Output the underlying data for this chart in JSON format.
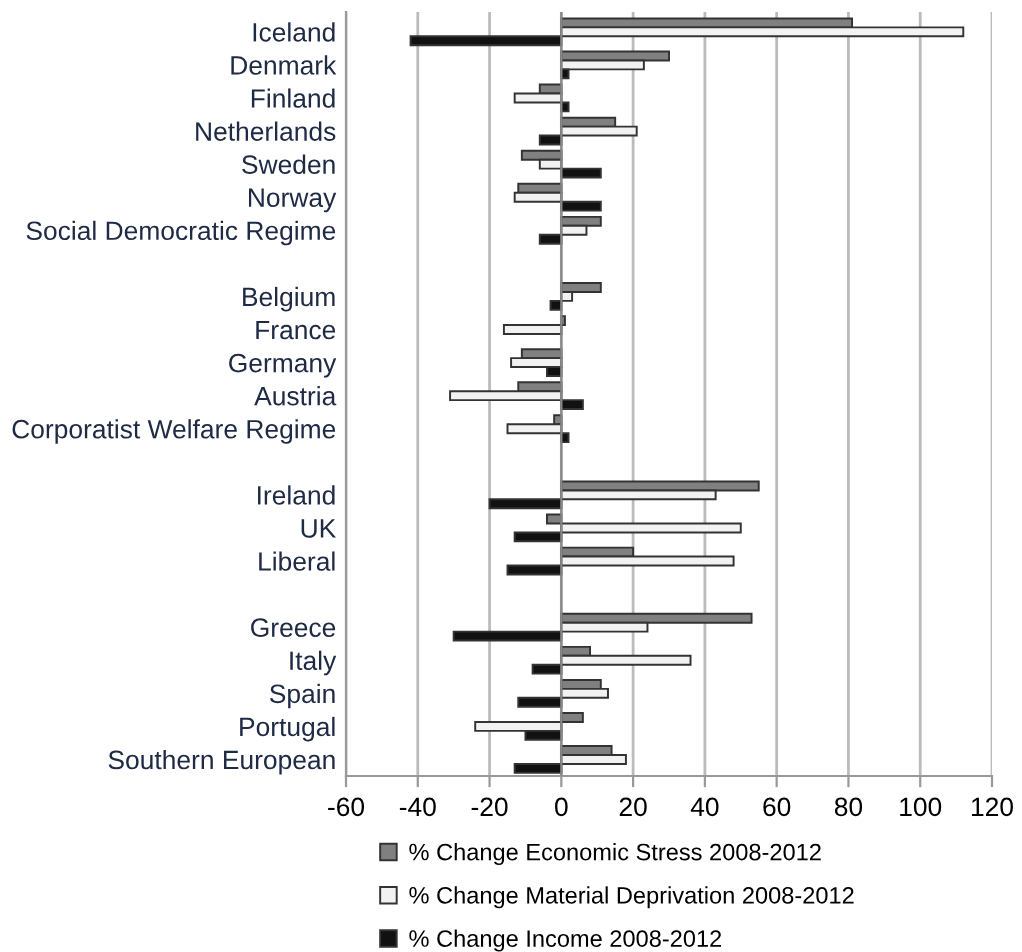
{
  "chart_data": {
    "type": "bar",
    "orientation": "horizontal",
    "categories": [
      "Iceland",
      "Denmark",
      "Finland",
      "Netherlands",
      "Sweden",
      "Norway",
      "Social Democratic Regime",
      null,
      "Belgium",
      "France",
      "Germany",
      "Austria",
      "Corporatist Welfare Regime",
      null,
      "Ireland",
      "UK",
      "Liberal",
      null,
      "Greece",
      "Italy",
      "Spain",
      "Portugal",
      "Southern European"
    ],
    "series": [
      {
        "name": "% Change Economic Stress 2008-2012",
        "color": "#808080",
        "values": [
          81,
          30,
          -6,
          15,
          -11,
          -12,
          11,
          null,
          11,
          1,
          -11,
          -12,
          -2,
          null,
          55,
          -4,
          20,
          null,
          53,
          8,
          11,
          6,
          14
        ]
      },
      {
        "name": "% Change Material Deprivation 2008-2012",
        "color": "#f2f2f2",
        "values": [
          112,
          23,
          -13,
          21,
          -6,
          -13,
          7,
          null,
          3,
          -16,
          -14,
          -31,
          -15,
          null,
          43,
          50,
          48,
          null,
          24,
          36,
          13,
          -24,
          18
        ]
      },
      {
        "name": "% Change Income 2008-2012",
        "color": "#111111",
        "values": [
          -42,
          2,
          2,
          -6,
          11,
          11,
          -6,
          null,
          -3,
          null,
          -4,
          6,
          2,
          null,
          -20,
          -13,
          -15,
          null,
          -30,
          -8,
          -12,
          -10,
          -13
        ]
      }
    ],
    "xlim": [
      -60,
      120
    ],
    "xticks": [
      -60,
      -40,
      -20,
      0,
      20,
      40,
      60,
      80,
      100,
      120
    ],
    "grid": "x",
    "legend": "bottom"
  }
}
